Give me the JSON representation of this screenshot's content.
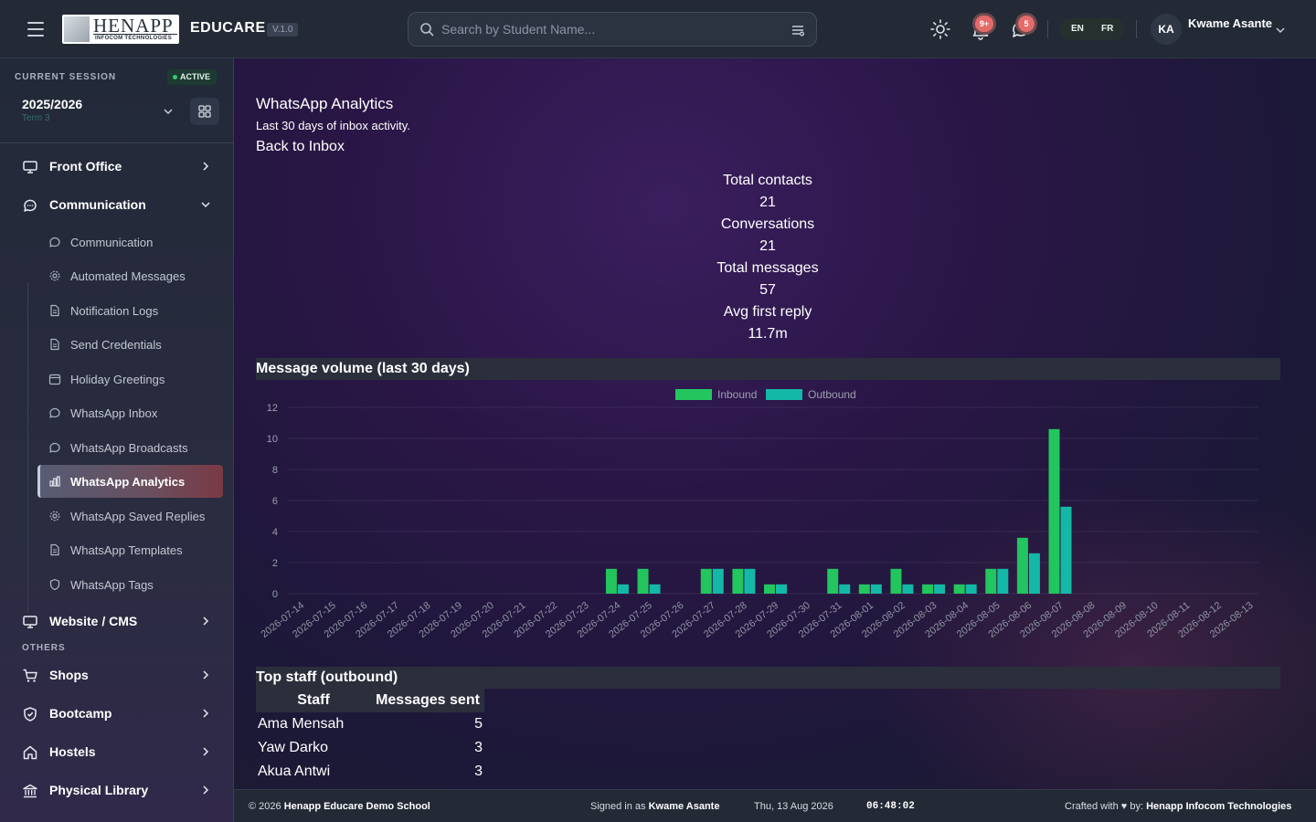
{
  "header": {
    "brand": "EDUCARE",
    "version": "V.1.0",
    "logo_text": "HENAPP",
    "logo_subtext": "INFOCOM TECHNOLOGIES",
    "search_placeholder": "Search by Student Name...",
    "notifications_badge": "9+",
    "messages_badge": "5",
    "languages": [
      "EN",
      "FR"
    ],
    "avatar_initials": "KA",
    "user_name": "Kwame Asante"
  },
  "sidebar": {
    "session_label": "CURRENT SESSION",
    "session_status": "ACTIVE",
    "session_year": "2025/2026",
    "session_term": "Term 3",
    "groups": [
      {
        "label": "Front Office",
        "icon": "monitor-icon"
      },
      {
        "label": "Communication",
        "icon": "chat-bubble-icon"
      }
    ],
    "sub_items": [
      {
        "label": "Communication",
        "icon": "chat-bubble-icon"
      },
      {
        "label": "Automated Messages",
        "icon": "gear-icon"
      },
      {
        "label": "Notification Logs",
        "icon": "document-icon"
      },
      {
        "label": "Send Credentials",
        "icon": "document-icon"
      },
      {
        "label": "Holiday Greetings",
        "icon": "calendar-icon"
      },
      {
        "label": "WhatsApp Inbox",
        "icon": "chat-bubble-icon"
      },
      {
        "label": "WhatsApp Broadcasts",
        "icon": "chat-bubble-icon"
      },
      {
        "label": "WhatsApp Analytics",
        "icon": "bar-chart-icon",
        "active": true
      },
      {
        "label": "WhatsApp Saved Replies",
        "icon": "gear-icon"
      },
      {
        "label": "WhatsApp Templates",
        "icon": "document-icon"
      },
      {
        "label": "WhatsApp Tags",
        "icon": "shield-icon"
      }
    ],
    "website_cms": "Website / CMS",
    "others_label": "OTHERS",
    "other_items": [
      {
        "label": "Shops",
        "icon": "cart-icon"
      },
      {
        "label": "Bootcamp",
        "icon": "shield-icon"
      },
      {
        "label": "Hostels",
        "icon": "home-icon"
      },
      {
        "label": "Physical Library",
        "icon": "library-icon"
      }
    ]
  },
  "page": {
    "title": "WhatsApp Analytics",
    "subtitle": "Last 30 days of inbox activity.",
    "back_link": "Back to Inbox",
    "stats": [
      {
        "label": "Total contacts",
        "value": "21"
      },
      {
        "label": "Conversations",
        "value": "21"
      },
      {
        "label": "Total messages",
        "value": "57"
      },
      {
        "label": "Avg first reply",
        "value": "11.7m"
      }
    ],
    "chart_section_title": "Message volume (last 30 days)",
    "staff_section_title": "Top staff (outbound)",
    "staff_table": {
      "headers": [
        "Staff",
        "Messages sent"
      ],
      "rows": [
        [
          "Ama Mensah",
          "5"
        ],
        [
          "Yaw Darko",
          "3"
        ],
        [
          "Akua Antwi",
          "3"
        ]
      ]
    }
  },
  "chart_data": {
    "type": "bar",
    "title": "Message volume (last 30 days)",
    "categories": [
      "2026-07-14",
      "2026-07-15",
      "2026-07-16",
      "2026-07-17",
      "2026-07-18",
      "2026-07-19",
      "2026-07-20",
      "2026-07-21",
      "2026-07-22",
      "2026-07-23",
      "2026-07-24",
      "2026-07-25",
      "2026-07-26",
      "2026-07-27",
      "2026-07-28",
      "2026-07-29",
      "2026-07-30",
      "2026-07-31",
      "2026-08-01",
      "2026-08-02",
      "2026-08-03",
      "2026-08-04",
      "2026-08-05",
      "2026-08-06",
      "2026-08-07",
      "2026-08-08",
      "2026-08-09",
      "2026-08-10",
      "2026-08-11",
      "2026-08-12",
      "2026-08-13"
    ],
    "series": [
      {
        "name": "Inbound",
        "color": "#22c55e",
        "values": [
          0,
          0,
          0,
          0,
          0,
          0,
          0,
          0,
          0,
          0,
          1.6,
          1.6,
          0,
          1.6,
          1.6,
          0.6,
          0,
          1.6,
          0.6,
          1.6,
          0.6,
          0.6,
          1.6,
          3.6,
          10.6,
          0,
          0,
          0,
          0,
          0,
          0
        ]
      },
      {
        "name": "Outbound",
        "color": "#14b8a6",
        "values": [
          0,
          0,
          0,
          0,
          0,
          0,
          0,
          0,
          0,
          0,
          0.6,
          0.6,
          0,
          1.6,
          1.6,
          0.6,
          0,
          0.6,
          0.6,
          0.6,
          0.6,
          0.6,
          1.6,
          2.6,
          5.6,
          0,
          0,
          0,
          0,
          0,
          0
        ]
      }
    ],
    "ylim": [
      0,
      12
    ],
    "yticks": [
      0,
      2,
      4,
      6,
      8,
      10,
      12
    ],
    "legend": "top-center",
    "grid": true
  },
  "footer": {
    "copyright": "© 2026",
    "school": "Henapp Educare Demo School",
    "signed_in_label": "Signed in as",
    "signed_in_user": "Kwame Asante",
    "date": "Thu, 13 Aug 2026",
    "time": "06:48:02",
    "crafted_label": "Crafted with ♥ by:",
    "crafted_by": "Henapp Infocom Technologies"
  }
}
